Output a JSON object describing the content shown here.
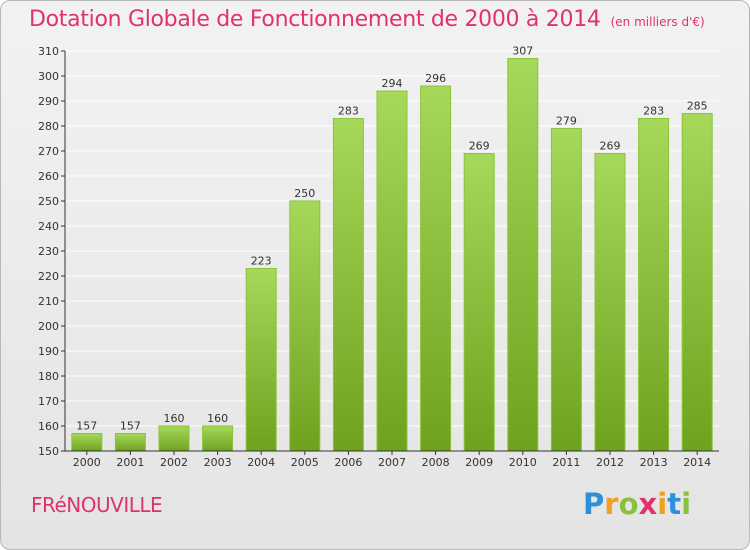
{
  "title": "Dotation Globale de Fonctionnement de 2000 à 2014",
  "subtitle": "(en milliers d'€)",
  "commune": "FRéNOUVILLE",
  "brand": {
    "letters": [
      "P",
      "r",
      "o",
      "x",
      "i",
      "t",
      "i"
    ],
    "colors": [
      "#2f8fd8",
      "#f0a020",
      "#8ac03c",
      "#e0336b",
      "#f0a020",
      "#2f8fd8",
      "#8ac03c"
    ]
  },
  "colors": {
    "bar_top": "#a6d85a",
    "bar_bottom": "#6ea21e",
    "axis": "#333333",
    "grid": "#ffffff",
    "title": "#e0336b"
  },
  "chart_data": {
    "type": "bar",
    "title": "Dotation Globale de Fonctionnement de 2000 à 2014",
    "categories": [
      "2000",
      "2001",
      "2002",
      "2003",
      "2004",
      "2005",
      "2006",
      "2007",
      "2008",
      "2009",
      "2010",
      "2011",
      "2012",
      "2013",
      "2014"
    ],
    "values": [
      157,
      157,
      160,
      160,
      223,
      250,
      283,
      294,
      296,
      269,
      307,
      279,
      269,
      283,
      285
    ],
    "ylim": [
      150,
      310
    ],
    "yticks": [
      150,
      160,
      170,
      180,
      190,
      200,
      210,
      220,
      230,
      240,
      250,
      260,
      270,
      280,
      290,
      300,
      310
    ],
    "grid": true,
    "xlabel": "",
    "ylabel": ""
  }
}
